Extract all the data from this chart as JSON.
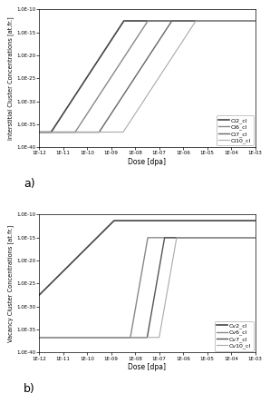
{
  "ylabel_a": "Interstitial Cluster Concentrations [at.fr.]",
  "ylabel_b": "Vacancy Cluster Concentrations [at.fr.]",
  "xlabel": "Dose [dpa]",
  "label_a": "a)",
  "label_b": "b)",
  "xlim_log": [
    -12,
    -3
  ],
  "ylim_log": [
    -40,
    -10
  ],
  "legend_a": [
    "Ci2_cl",
    "Ci6_cl",
    "Ci7_cl",
    "Ci10_cl"
  ],
  "legend_b": [
    "Cv2_cl",
    "Cv6_cl",
    "Cv7_cl",
    "Cv10_cl"
  ],
  "colors_a": [
    "#444444",
    "#888888",
    "#666666",
    "#aaaaaa"
  ],
  "colors_b": [
    "#444444",
    "#888888",
    "#555555",
    "#aaaaaa"
  ],
  "linewidths_a": [
    1.2,
    1.0,
    1.0,
    0.8
  ],
  "linewidths_b": [
    1.2,
    1.0,
    1.0,
    0.8
  ],
  "ci_params": [
    {
      "y_floor_log": -36.7,
      "x_floor_end": -11.5,
      "slope": 8.0,
      "x_start_rise": -11.5,
      "y_high_log": -12.5,
      "x_plateau": -6.0
    },
    {
      "y_floor_log": -36.7,
      "x_floor_end": -10.5,
      "slope": 8.0,
      "x_start_rise": -10.5,
      "y_high_log": -12.5,
      "x_plateau": -5.5
    },
    {
      "y_floor_log": -36.7,
      "x_floor_end": -9.5,
      "slope": 8.0,
      "x_start_rise": -9.5,
      "y_high_log": -12.5,
      "x_plateau": -5.0
    },
    {
      "y_floor_log": -36.7,
      "x_floor_end": -8.5,
      "slope": 8.0,
      "x_start_rise": -8.5,
      "y_high_log": -12.5,
      "x_plateau": -4.5
    }
  ],
  "cv_params": [
    {
      "y_floor_log": -27.5,
      "x_start": -12.0,
      "slope": 5.2,
      "y_high_log": -11.3,
      "x_plateau": -5.0
    },
    {
      "y_floor_log": -36.7,
      "x_floor_end": -8.2,
      "slope": 30.0,
      "x_start_rise": -8.2,
      "y_high_log": -15.0,
      "x_plateau": -5.5
    },
    {
      "y_floor_log": -36.7,
      "x_floor_end": -7.5,
      "slope": 30.0,
      "x_start_rise": -7.5,
      "y_high_log": -15.0,
      "x_plateau": -5.0
    },
    {
      "y_floor_log": -36.7,
      "x_floor_end": -7.0,
      "slope": 30.0,
      "x_start_rise": -7.0,
      "y_high_log": -15.0,
      "x_plateau": -4.0
    }
  ]
}
